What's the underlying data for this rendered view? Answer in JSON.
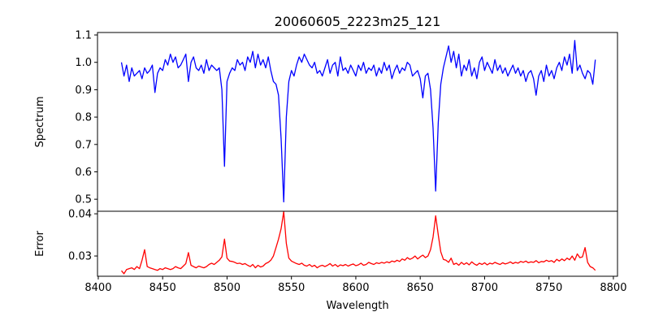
{
  "chart_data": [
    {
      "type": "line",
      "title": "20060605_2223m25_121",
      "xlabel": "",
      "ylabel": "Spectrum",
      "xlim": [
        8399.4,
        8803.2
      ],
      "ylim": [
        0.456,
        1.109
      ],
      "yticks": [
        "0.5",
        "0.6",
        "0.7",
        "0.8",
        "0.9",
        "1.0",
        "1.1"
      ],
      "color": "#0000ff",
      "x_start": 8418,
      "x_step": 2,
      "values": [
        1.0,
        0.95,
        0.99,
        0.93,
        0.98,
        0.95,
        0.96,
        0.97,
        0.94,
        0.98,
        0.96,
        0.97,
        0.99,
        0.89,
        0.96,
        0.98,
        0.97,
        1.01,
        0.99,
        1.03,
        1.0,
        1.02,
        0.98,
        0.99,
        1.01,
        1.03,
        0.93,
        1.0,
        1.02,
        0.98,
        0.97,
        0.99,
        0.96,
        1.01,
        0.97,
        0.99,
        0.98,
        0.97,
        0.98,
        0.9,
        0.62,
        0.93,
        0.96,
        0.98,
        0.97,
        1.01,
        0.99,
        1.0,
        0.97,
        1.02,
        1.0,
        1.04,
        0.98,
        1.03,
        0.99,
        1.01,
        0.98,
        1.02,
        0.97,
        0.93,
        0.92,
        0.88,
        0.72,
        0.49,
        0.8,
        0.93,
        0.97,
        0.95,
        0.99,
        1.02,
        1.0,
        1.03,
        1.01,
        0.99,
        0.98,
        1.0,
        0.96,
        0.97,
        0.95,
        0.98,
        1.01,
        0.96,
        0.99,
        1.0,
        0.95,
        1.02,
        0.97,
        0.98,
        0.96,
        0.99,
        0.97,
        0.95,
        0.99,
        0.97,
        1.0,
        0.96,
        0.98,
        0.97,
        0.99,
        0.95,
        0.98,
        0.96,
        1.0,
        0.97,
        0.99,
        0.94,
        0.97,
        0.99,
        0.96,
        0.98,
        0.97,
        1.0,
        0.99,
        0.95,
        0.96,
        0.97,
        0.94,
        0.87,
        0.95,
        0.96,
        0.9,
        0.76,
        0.53,
        0.78,
        0.92,
        0.98,
        1.02,
        1.06,
        1.0,
        1.04,
        0.98,
        1.03,
        0.95,
        0.99,
        0.97,
        1.01,
        0.95,
        0.98,
        0.94,
        1.0,
        1.02,
        0.97,
        1.0,
        0.98,
        0.96,
        1.01,
        0.97,
        0.99,
        0.96,
        0.98,
        0.95,
        0.97,
        0.99,
        0.96,
        0.98,
        0.95,
        0.97,
        0.93,
        0.96,
        0.97,
        0.94,
        0.88,
        0.95,
        0.97,
        0.93,
        0.99,
        0.95,
        0.97,
        0.94,
        0.98,
        1.0,
        0.97,
        1.02,
        0.99,
        1.03,
        0.96,
        1.08,
        0.97,
        0.99,
        0.96,
        0.94,
        0.97,
        0.96,
        0.92,
        1.01
      ]
    },
    {
      "type": "line",
      "title": "",
      "xlabel": "Wavelength",
      "ylabel": "Error",
      "xlim": [
        8399.4,
        8803.2
      ],
      "ylim": [
        0.0252,
        0.0406
      ],
      "xticks": [
        "8400",
        "8450",
        "8500",
        "8550",
        "8600",
        "8650",
        "8700",
        "8750",
        "8800"
      ],
      "yticks": [
        "0.03",
        "0.04"
      ],
      "color": "#ff0000",
      "x_start": 8418,
      "x_step": 2,
      "values": [
        0.0265,
        0.0258,
        0.0268,
        0.027,
        0.0272,
        0.0268,
        0.0275,
        0.027,
        0.029,
        0.0315,
        0.0275,
        0.0272,
        0.027,
        0.0268,
        0.0266,
        0.027,
        0.0268,
        0.0272,
        0.027,
        0.0268,
        0.027,
        0.0275,
        0.0272,
        0.027,
        0.0276,
        0.0282,
        0.0308,
        0.0278,
        0.0275,
        0.0272,
        0.0276,
        0.0274,
        0.0272,
        0.0275,
        0.028,
        0.0283,
        0.028,
        0.0285,
        0.029,
        0.0298,
        0.034,
        0.0295,
        0.0288,
        0.0287,
        0.0285,
        0.0282,
        0.0283,
        0.028,
        0.0282,
        0.0278,
        0.0275,
        0.028,
        0.0272,
        0.0278,
        0.0274,
        0.0276,
        0.0282,
        0.0285,
        0.029,
        0.03,
        0.032,
        0.034,
        0.0365,
        0.0405,
        0.033,
        0.0295,
        0.0288,
        0.0285,
        0.0282,
        0.028,
        0.0283,
        0.0278,
        0.0276,
        0.028,
        0.0275,
        0.0278,
        0.0272,
        0.0276,
        0.0278,
        0.0275,
        0.0278,
        0.0282,
        0.0276,
        0.028,
        0.0275,
        0.0279,
        0.0277,
        0.028,
        0.0276,
        0.0279,
        0.0281,
        0.0277,
        0.0279,
        0.0283,
        0.0278,
        0.028,
        0.0285,
        0.0282,
        0.028,
        0.0284,
        0.0282,
        0.0285,
        0.0283,
        0.0286,
        0.0284,
        0.0288,
        0.0286,
        0.029,
        0.0287,
        0.0293,
        0.029,
        0.0296,
        0.0292,
        0.0295,
        0.03,
        0.0293,
        0.0298,
        0.0302,
        0.0296,
        0.03,
        0.0315,
        0.0345,
        0.0395,
        0.035,
        0.031,
        0.0292,
        0.029,
        0.0285,
        0.0295,
        0.028,
        0.0283,
        0.0278,
        0.0285,
        0.028,
        0.0284,
        0.0279,
        0.0286,
        0.0281,
        0.0278,
        0.0283,
        0.028,
        0.0284,
        0.0279,
        0.0283,
        0.0281,
        0.0285,
        0.0282,
        0.028,
        0.0284,
        0.0281,
        0.0283,
        0.0286,
        0.0282,
        0.0285,
        0.0283,
        0.0287,
        0.0285,
        0.0288,
        0.0284,
        0.0286,
        0.0285,
        0.0289,
        0.0284,
        0.0287,
        0.0286,
        0.029,
        0.0287,
        0.0289,
        0.0285,
        0.0292,
        0.0288,
        0.0293,
        0.0289,
        0.0295,
        0.0291,
        0.03,
        0.029,
        0.0305,
        0.0296,
        0.0298,
        0.032,
        0.0285,
        0.0275,
        0.0272,
        0.0266
      ]
    }
  ]
}
